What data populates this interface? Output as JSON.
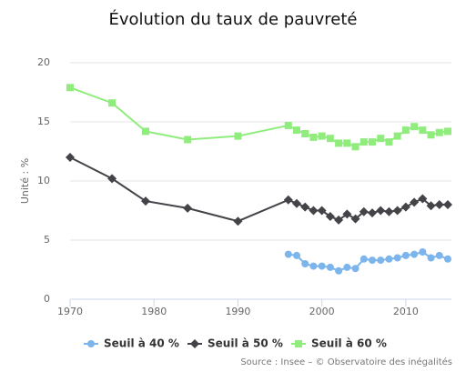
{
  "chart_data": {
    "type": "line",
    "title": "Évolution du taux de pauvreté",
    "y_label": "Unité : %",
    "source": "Source : Insee – © Observatoire des inégalités",
    "x": [
      1970,
      1975,
      1979,
      1984,
      1990,
      1996,
      1997,
      1998,
      1999,
      2000,
      2001,
      2002,
      2003,
      2004,
      2005,
      2006,
      2007,
      2008,
      2009,
      2010,
      2011,
      2012,
      2013,
      2014,
      2015
    ],
    "series": [
      {
        "name": "Seuil à  40 %",
        "color": "#7cb5ec",
        "marker": "circle",
        "values": [
          null,
          null,
          null,
          null,
          null,
          3.8,
          3.7,
          3.0,
          2.8,
          2.8,
          2.7,
          2.4,
          2.7,
          2.6,
          3.4,
          3.3,
          3.3,
          3.4,
          3.5,
          3.7,
          3.8,
          4.0,
          3.5,
          3.7,
          3.4
        ]
      },
      {
        "name": "Seuil à 50 %",
        "color": "#434348",
        "marker": "diamond",
        "values": [
          12.0,
          10.2,
          8.3,
          7.7,
          6.6,
          8.4,
          8.1,
          7.8,
          7.5,
          7.5,
          7.0,
          6.7,
          7.2,
          6.8,
          7.4,
          7.3,
          7.5,
          7.4,
          7.5,
          7.8,
          8.2,
          8.5,
          7.9,
          8.0,
          8.0
        ]
      },
      {
        "name": "Seuil à 60 %",
        "color": "#90ed7d",
        "marker": "square",
        "values": [
          17.9,
          16.6,
          14.2,
          13.5,
          13.8,
          14.7,
          14.3,
          14.0,
          13.7,
          13.8,
          13.6,
          13.2,
          13.2,
          12.9,
          13.3,
          13.3,
          13.6,
          13.3,
          13.8,
          14.3,
          14.6,
          14.3,
          13.9,
          14.1,
          14.2
        ]
      }
    ],
    "xlim": [
      1970,
      2015
    ],
    "xticks": [
      1970,
      1980,
      1990,
      2000,
      2010
    ],
    "ylim": [
      0,
      20
    ],
    "yticks": [
      0,
      5,
      10,
      15,
      20
    ],
    "grid": true,
    "legend": "bottom"
  }
}
